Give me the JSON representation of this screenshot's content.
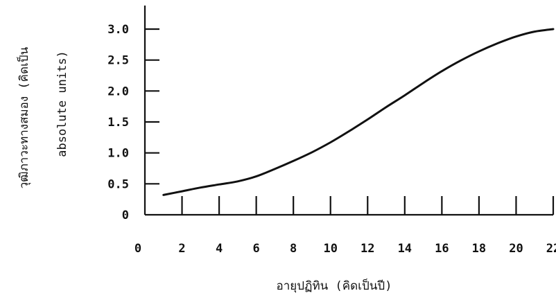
{
  "chart_data": {
    "type": "line",
    "title": "",
    "xlabel": "อายุปฏิทิน (คิดเป็นปี)",
    "ylabel_line1": "วุฒิภาวะทางสมอง (คิดเป็น",
    "ylabel_line2": "absolute units)",
    "xlim": [
      0,
      22
    ],
    "ylim": [
      0,
      3.0
    ],
    "x_ticks": [
      0,
      2,
      4,
      6,
      8,
      10,
      12,
      14,
      16,
      18,
      20,
      22
    ],
    "x_tick_labels": [
      "0",
      "2",
      "4",
      "6",
      "8",
      "10",
      "12",
      "14",
      "16",
      "18",
      "20",
      "22"
    ],
    "y_ticks": [
      0,
      0.5,
      1.0,
      1.5,
      2.0,
      2.5,
      3.0
    ],
    "y_tick_labels": [
      "0",
      "0.5",
      "1.0",
      "1.5",
      "2.0",
      "2.5",
      "3.0"
    ],
    "grid": false,
    "series": [
      {
        "x": [
          1,
          2,
          3,
          4,
          5,
          6,
          7,
          8,
          9,
          10,
          11,
          12,
          13,
          14,
          15,
          16,
          17,
          18,
          19,
          20,
          21,
          22
        ],
        "y": [
          0.32,
          0.38,
          0.44,
          0.49,
          0.54,
          0.62,
          0.74,
          0.87,
          1.01,
          1.17,
          1.35,
          1.54,
          1.74,
          1.93,
          2.13,
          2.32,
          2.49,
          2.64,
          2.77,
          2.88,
          2.96,
          3.0
        ]
      }
    ],
    "color": "#111111"
  }
}
